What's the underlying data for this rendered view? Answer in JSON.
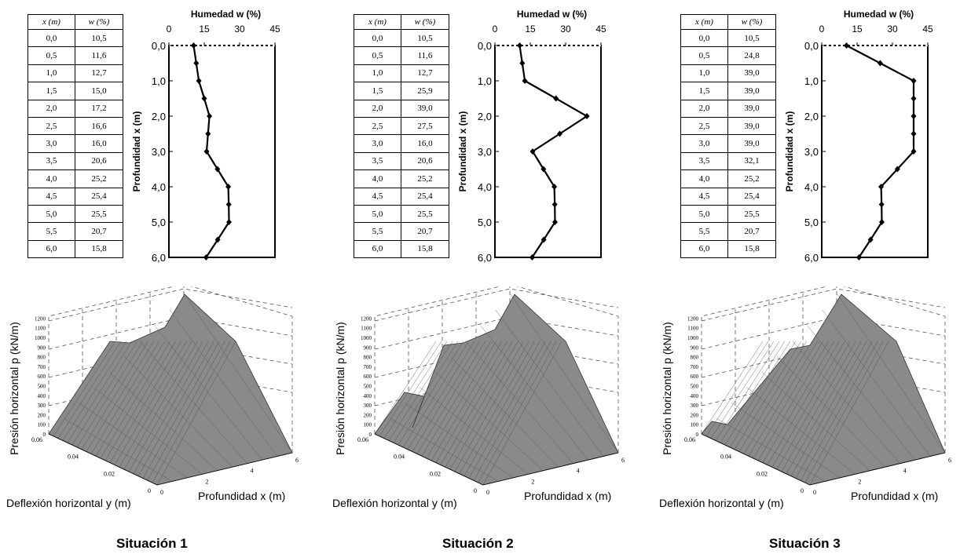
{
  "panels": [
    {
      "title": "Situación 1",
      "table": {
        "headers": [
          "x  (m)",
          "w  (%)"
        ],
        "rows": [
          [
            "0,0",
            "10,5"
          ],
          [
            "0,5",
            "11,6"
          ],
          [
            "1,0",
            "12,7"
          ],
          [
            "1,5",
            "15,0"
          ],
          [
            "2,0",
            "17,2"
          ],
          [
            "2,5",
            "16,6"
          ],
          [
            "3,0",
            "16,0"
          ],
          [
            "3,5",
            "20,6"
          ],
          [
            "4,0",
            "25,2"
          ],
          [
            "4,5",
            "25,4"
          ],
          [
            "5,0",
            "25,5"
          ],
          [
            "5,5",
            "20,7"
          ],
          [
            "6,0",
            "15,8"
          ]
        ]
      },
      "surface": {
        "zlabel": "Presión horizontal p (kN/m)",
        "ylabel": "Deflexión horizontal y (m)",
        "xlabel": "Profundidad x (m)"
      }
    },
    {
      "title": "Situación 2",
      "table": {
        "headers": [
          "x  (m)",
          "w  (%)"
        ],
        "rows": [
          [
            "0,0",
            "10,5"
          ],
          [
            "0,5",
            "11,6"
          ],
          [
            "1,0",
            "12,7"
          ],
          [
            "1,5",
            "25,9"
          ],
          [
            "2,0",
            "39,0"
          ],
          [
            "2,5",
            "27,5"
          ],
          [
            "3,0",
            "16,0"
          ],
          [
            "3,5",
            "20,6"
          ],
          [
            "4,0",
            "25,2"
          ],
          [
            "4,5",
            "25,4"
          ],
          [
            "5,0",
            "25,5"
          ],
          [
            "5,5",
            "20,7"
          ],
          [
            "6,0",
            "15,8"
          ]
        ]
      },
      "surface": {
        "zlabel": "Presión horizontal p (kN/m)",
        "ylabel": "Deflexión horizontal y (m)",
        "xlabel": "Profundidad x (m)"
      }
    },
    {
      "title": "Situación 3",
      "table": {
        "headers": [
          "x  (m)",
          "w  (%)"
        ],
        "rows": [
          [
            "0,0",
            "10,5"
          ],
          [
            "0,5",
            "24,8"
          ],
          [
            "1,0",
            "39,0"
          ],
          [
            "1,5",
            "39,0"
          ],
          [
            "2,0",
            "39,0"
          ],
          [
            "2,5",
            "39,0"
          ],
          [
            "3,0",
            "39,0"
          ],
          [
            "3,5",
            "32,1"
          ],
          [
            "4,0",
            "25,2"
          ],
          [
            "4,5",
            "25,4"
          ],
          [
            "5,0",
            "25,5"
          ],
          [
            "5,5",
            "20,7"
          ],
          [
            "6,0",
            "15,8"
          ]
        ]
      },
      "surface": {
        "zlabel": "Presión horizontal p (kN/m)",
        "ylabel": "Deflexión horizontal y (m)",
        "xlabel": "Profundidad x (m)"
      }
    }
  ],
  "chart_data": [
    {
      "type": "line",
      "title": "Humedad w (%)",
      "ylabel": "Profundidad x (m)",
      "xlim": [
        0,
        45
      ],
      "ylim": [
        6,
        0
      ],
      "x_ticks": [
        "0",
        "15",
        "30",
        "45"
      ],
      "y_ticks": [
        "0,0",
        "1,0",
        "2,0",
        "3,0",
        "4,0",
        "5,0",
        "6,0"
      ],
      "series": [
        {
          "x": [
            10.5,
            11.6,
            12.7,
            15.0,
            17.2,
            16.6,
            16.0,
            20.6,
            25.2,
            25.4,
            25.5,
            20.7,
            15.8
          ],
          "y": [
            0,
            0.5,
            1,
            1.5,
            2,
            2.5,
            3,
            3.5,
            4,
            4.5,
            5,
            5.5,
            6
          ]
        }
      ],
      "color": "#000000"
    },
    {
      "type": "line",
      "title": "Humedad w (%)",
      "ylabel": "Profundidad x (m)",
      "xlim": [
        0,
        45
      ],
      "ylim": [
        6,
        0
      ],
      "x_ticks": [
        "0",
        "15",
        "30",
        "45"
      ],
      "y_ticks": [
        "0,0",
        "1,0",
        "2,0",
        "3,0",
        "4,0",
        "5,0",
        "6,0"
      ],
      "series": [
        {
          "x": [
            10.5,
            11.6,
            12.7,
            25.9,
            39.0,
            27.5,
            16.0,
            20.6,
            25.2,
            25.4,
            25.5,
            20.7,
            15.8
          ],
          "y": [
            0,
            0.5,
            1,
            1.5,
            2,
            2.5,
            3,
            3.5,
            4,
            4.5,
            5,
            5.5,
            6
          ]
        }
      ],
      "color": "#000000"
    },
    {
      "type": "line",
      "title": "Humedad w (%)",
      "ylabel": "Profundidad x (m)",
      "xlim": [
        0,
        45
      ],
      "ylim": [
        6,
        0
      ],
      "x_ticks": [
        "0",
        "15",
        "30",
        "45"
      ],
      "y_ticks": [
        "0,0",
        "1,0",
        "2,0",
        "3,0",
        "4,0",
        "5,0",
        "6,0"
      ],
      "series": [
        {
          "x": [
            10.5,
            24.8,
            39.0,
            39.0,
            39.0,
            39.0,
            39.0,
            32.1,
            25.2,
            25.4,
            25.5,
            20.7,
            15.8
          ],
          "y": [
            0,
            0.5,
            1,
            1.5,
            2,
            2.5,
            3,
            3.5,
            4,
            4.5,
            5,
            5.5,
            6
          ]
        }
      ],
      "color": "#000000"
    },
    {
      "type": "surface3d",
      "z_ticks": [
        "0",
        "100",
        "200",
        "300",
        "400",
        "500",
        "600",
        "700",
        "800",
        "900",
        "1000",
        "1100",
        "1200"
      ],
      "x_ticks": [
        "0",
        "2",
        "4",
        "6"
      ],
      "y_ticks": [
        "0",
        "0.02",
        "0.04",
        "0.06"
      ],
      "zlim": [
        0,
        1200
      ],
      "xlim": [
        0,
        6
      ],
      "ylim": [
        0,
        0.06
      ],
      "surface_color": "#8a8a8a"
    }
  ]
}
